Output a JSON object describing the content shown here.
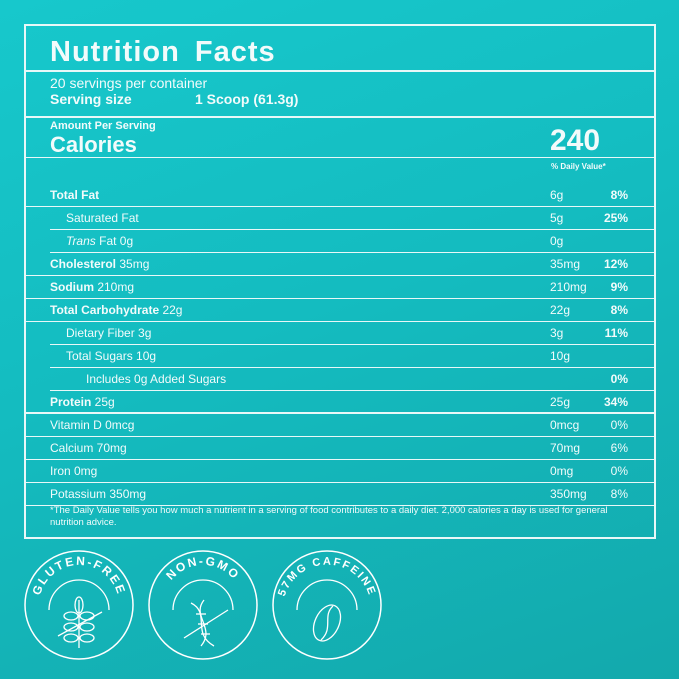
{
  "title": "Nutrition Facts",
  "servings_per_container": "20 servings per container",
  "serving_size_label": "Serving size",
  "serving_size_value": "1 Scoop (61.3g)",
  "amount_per_serving": "Amount Per Serving",
  "calories_label": "Calories",
  "calories_value": "240",
  "daily_value_header": "% Daily Value*",
  "rows": [
    {
      "bold": "Total Fat",
      "rest": "",
      "amount": "6g",
      "pct": "8%",
      "indent": 0,
      "pct_bold": true
    },
    {
      "bold": "",
      "rest": "Saturated Fat",
      "amount": "5g",
      "pct": "25%",
      "indent": 1,
      "pct_bold": true
    },
    {
      "italic": "Trans",
      "rest": " Fat 0g",
      "amount": "0g",
      "pct": "",
      "indent": 1
    },
    {
      "bold": "Cholesterol",
      "rest": " 35mg",
      "amount": "35mg",
      "pct": "12%",
      "indent": 0,
      "pct_bold": true
    },
    {
      "bold": "Sodium",
      "rest": " 210mg",
      "amount": "210mg",
      "pct": "9%",
      "indent": 0,
      "pct_bold": true
    },
    {
      "bold": "Total Carbohydrate",
      "rest": " 22g",
      "amount": "22g",
      "pct": "8%",
      "indent": 0,
      "pct_bold": true
    },
    {
      "bold": "",
      "rest": "Dietary Fiber 3g",
      "amount": "3g",
      "pct": "11%",
      "indent": 1,
      "pct_bold": true
    },
    {
      "bold": "",
      "rest": "Total Sugars 10g",
      "amount": "10g",
      "pct": "",
      "indent": 1
    },
    {
      "bold": "",
      "rest": "Includes 0g Added Sugars",
      "amount": "",
      "pct": "0%",
      "indent": 2,
      "pct_bold": true
    },
    {
      "bold": "Protein",
      "rest": " 25g",
      "amount": "25g",
      "pct": "34%",
      "indent": 0,
      "pct_bold": true,
      "thick": true
    },
    {
      "bold": "",
      "rest": "Vitamin D 0mcg",
      "amount": "0mcg",
      "pct": "0%",
      "indent": 0
    },
    {
      "bold": "",
      "rest": "Calcium 70mg",
      "amount": "70mg",
      "pct": "6%",
      "indent": 0
    },
    {
      "bold": "",
      "rest": "Iron 0mg",
      "amount": "0mg",
      "pct": "0%",
      "indent": 0
    },
    {
      "bold": "",
      "rest": "Potassium 350mg",
      "amount": "350mg",
      "pct": "8%",
      "indent": 0
    }
  ],
  "footnote": "*The Daily Value tells you how much a nutrient in a serving of food contributes to a daily diet. 2,000 calories a day is used for general nutrition advice.",
  "badges": [
    {
      "label": "GLUTEN-FREE",
      "icon": "wheat-crossed-icon"
    },
    {
      "label": "NON-GMO",
      "icon": "dna-crossed-icon"
    },
    {
      "label": "57MG CAFFEINE",
      "icon": "coffee-bean-icon"
    }
  ]
}
